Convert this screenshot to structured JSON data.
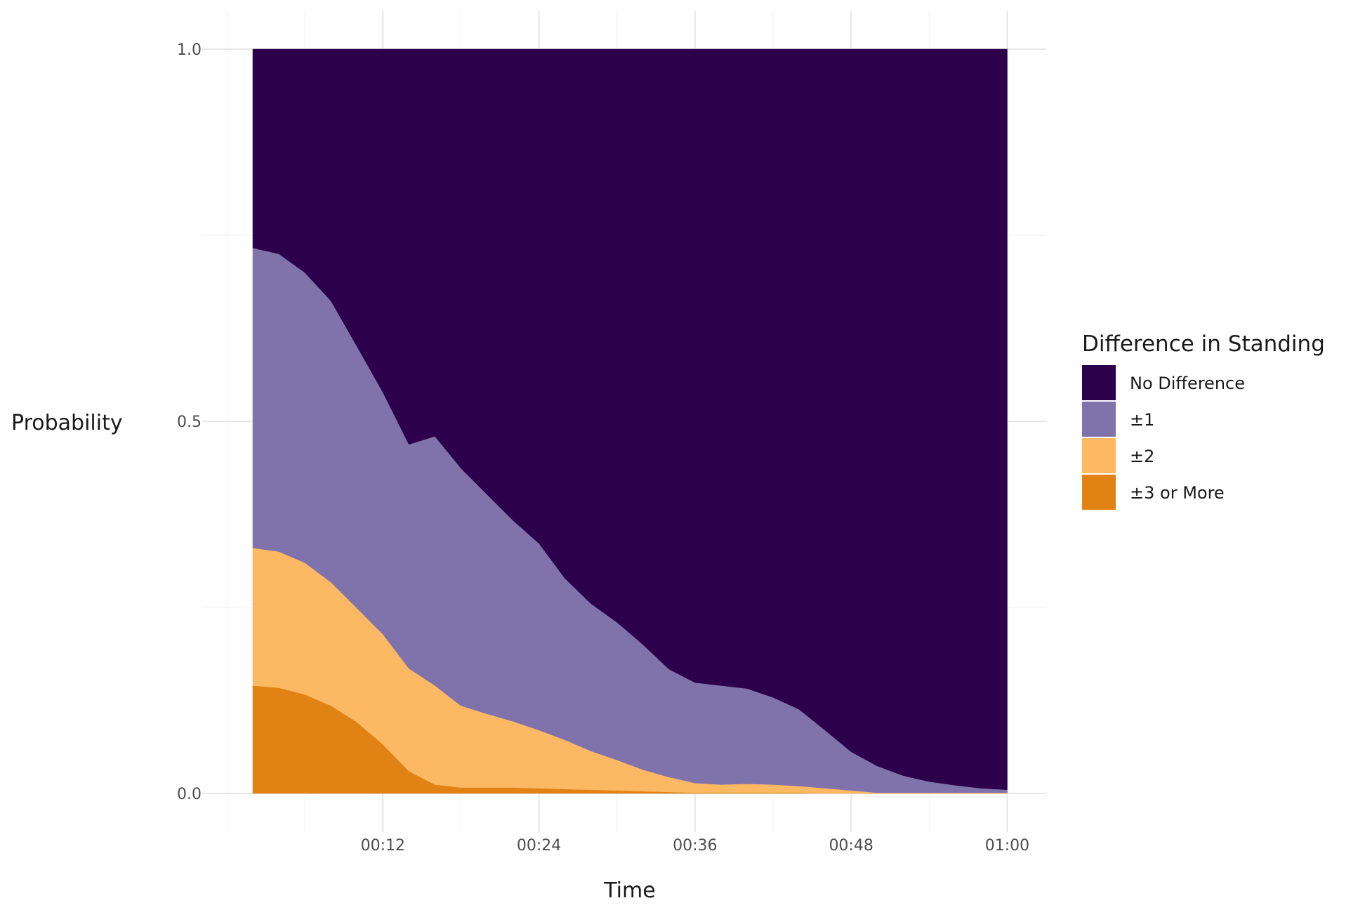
{
  "chart_data": {
    "type": "area",
    "stacked": true,
    "normalized": true,
    "xlabel": "Time",
    "ylabel": "Probability",
    "x_unit": "minutes",
    "xlim": [
      0,
      63
    ],
    "ylim": [
      0,
      1
    ],
    "x_ticks": [
      {
        "value": 12,
        "label": "00:12"
      },
      {
        "value": 24,
        "label": "00:24"
      },
      {
        "value": 36,
        "label": "00:36"
      },
      {
        "value": 48,
        "label": "00:48"
      },
      {
        "value": 60,
        "label": "01:00"
      }
    ],
    "y_ticks": [
      {
        "value": 0,
        "label": "0.0"
      },
      {
        "value": 0.5,
        "label": "0.5"
      },
      {
        "value": 1,
        "label": "1.0"
      }
    ],
    "grid": true,
    "legend": {
      "title": "Difference in Standing",
      "placement": "right",
      "entries": [
        "No Difference",
        "±1",
        "±2",
        "±3 or More"
      ]
    },
    "x": [
      2,
      4,
      6,
      8,
      10,
      12,
      14,
      16,
      18,
      20,
      22,
      24,
      26,
      28,
      30,
      32,
      34,
      36,
      38,
      40,
      42,
      44,
      46,
      48,
      50,
      52,
      54,
      56,
      58,
      60
    ],
    "series": [
      {
        "name": "±3 or More",
        "color": "#e08214",
        "values": [
          0.145,
          0.142,
          0.133,
          0.118,
          0.096,
          0.066,
          0.03,
          0.012,
          0.008,
          0.008,
          0.008,
          0.007,
          0.006,
          0.005,
          0.004,
          0.003,
          0.002,
          0.001,
          0.001,
          0.001,
          0.001,
          0.001,
          0.0,
          0.0,
          0.0,
          0.0,
          0.0,
          0.0,
          0.0,
          0.0
        ]
      },
      {
        "name": "±2",
        "color": "#fdb863",
        "values": [
          0.185,
          0.183,
          0.177,
          0.166,
          0.153,
          0.148,
          0.138,
          0.133,
          0.11,
          0.099,
          0.089,
          0.078,
          0.066,
          0.052,
          0.041,
          0.029,
          0.02,
          0.013,
          0.011,
          0.012,
          0.011,
          0.009,
          0.007,
          0.004,
          0.001,
          0.001,
          0.001,
          0.001,
          0.001,
          0.001
        ]
      },
      {
        "name": "±1",
        "color": "#8073ac",
        "values": [
          0.403,
          0.4,
          0.39,
          0.378,
          0.352,
          0.325,
          0.301,
          0.335,
          0.319,
          0.295,
          0.27,
          0.251,
          0.217,
          0.198,
          0.185,
          0.168,
          0.145,
          0.135,
          0.133,
          0.128,
          0.117,
          0.103,
          0.078,
          0.052,
          0.036,
          0.023,
          0.015,
          0.01,
          0.006,
          0.004
        ]
      },
      {
        "name": "No Difference",
        "color": "#2d004b",
        "values": [
          0.267,
          0.275,
          0.3,
          0.338,
          0.399,
          0.461,
          0.531,
          0.52,
          0.563,
          0.598,
          0.633,
          0.664,
          0.711,
          0.745,
          0.77,
          0.8,
          0.833,
          0.851,
          0.855,
          0.859,
          0.871,
          0.887,
          0.915,
          0.944,
          0.963,
          0.976,
          0.984,
          0.989,
          0.993,
          0.995
        ]
      }
    ]
  }
}
